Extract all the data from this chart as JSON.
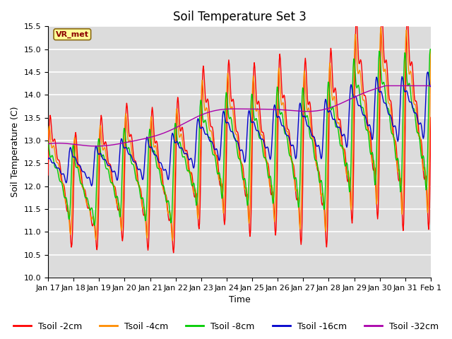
{
  "title": "Soil Temperature Set 3",
  "xlabel": "Time",
  "ylabel": "Soil Temperature (C)",
  "ylim": [
    10.0,
    15.5
  ],
  "yticks": [
    10.0,
    10.5,
    11.0,
    11.5,
    12.0,
    12.5,
    13.0,
    13.5,
    14.0,
    14.5,
    15.0,
    15.5
  ],
  "colors": {
    "Tsoil -2cm": "#FF0000",
    "Tsoil -4cm": "#FF8C00",
    "Tsoil -8cm": "#00CC00",
    "Tsoil -16cm": "#0000CC",
    "Tsoil -32cm": "#AA00AA"
  },
  "annotation_text": "VR_met",
  "annotation_color": "#8B0000",
  "annotation_bg": "#FFFF99",
  "background_color": "#DCDCDC",
  "grid_color": "#FFFFFF",
  "title_fontsize": 12,
  "axis_fontsize": 9,
  "tick_fontsize": 8,
  "legend_fontsize": 9,
  "xtick_labels": [
    "Jan 17",
    "Jan 18",
    "Jan 19",
    "Jan 20",
    "Jan 21",
    "Jan 22",
    "Jan 23",
    "Jan 24",
    "Jan 25",
    "Jan 26",
    "Jan 27",
    "Jan 28",
    "Jan 29",
    "Jan 30",
    "Jan 31",
    "Feb 1"
  ],
  "legend_labels": [
    "Tsoil -2cm",
    "Tsoil -4cm",
    "Tsoil -8cm",
    "Tsoil -16cm",
    "Tsoil -32cm"
  ]
}
